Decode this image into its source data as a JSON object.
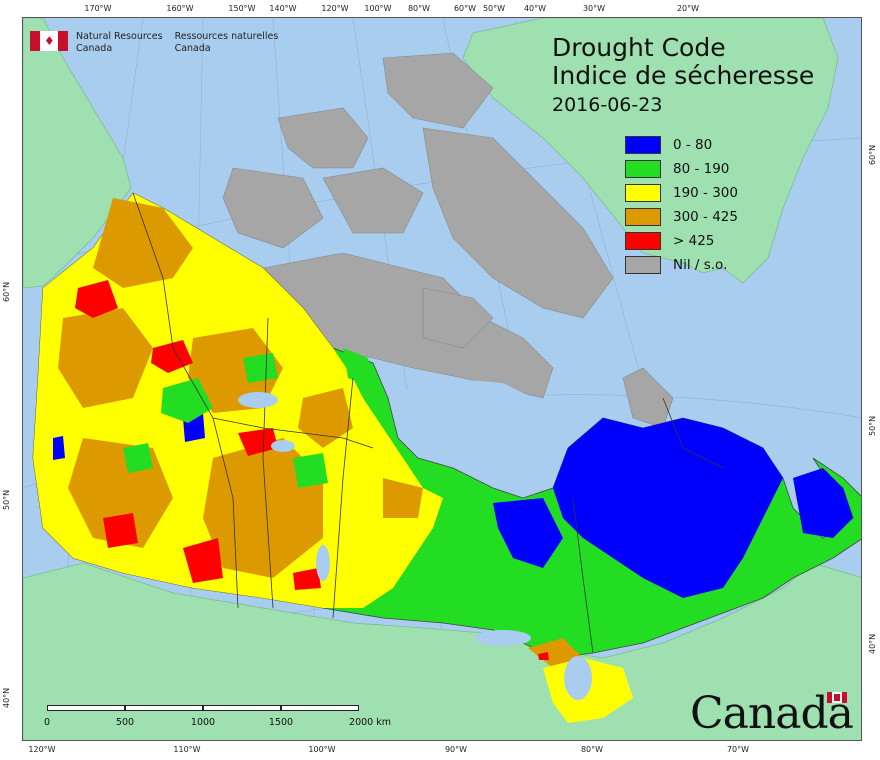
{
  "title": {
    "line1": "Drought Code",
    "line2": "Indice de sécheresse",
    "date": "2016-06-23"
  },
  "agency": {
    "en_line1": "Natural Resources",
    "en_line2": "Canada",
    "fr_line1": "Ressources naturelles",
    "fr_line2": "Canada"
  },
  "wordmark": "Canada",
  "legend": [
    {
      "label": "0 - 80",
      "color": "#0000ff"
    },
    {
      "label": "80 - 190",
      "color": "#22dd22"
    },
    {
      "label": "190 - 300",
      "color": "#ffff00"
    },
    {
      "label": "300 - 425",
      "color": "#dd9a00"
    },
    {
      "label": "> 425",
      "color": "#ff0000"
    },
    {
      "label": "Nil / s.o.",
      "color": "#a6a6a6"
    }
  ],
  "ticks": {
    "top": [
      "170°W",
      "160°W",
      "150°W",
      "140°W",
      "120°W",
      "100°W",
      "80°W",
      "60°W",
      "50°W",
      "40°W",
      "30°W",
      "20°W"
    ],
    "bottom": [
      "120°W",
      "110°W",
      "100°W",
      "90°W",
      "80°W",
      "70°W"
    ],
    "left": [
      "60°N",
      "50°N",
      "40°N"
    ],
    "right": [
      "60°N",
      "50°N",
      "40°N"
    ]
  },
  "scale": {
    "labels": [
      "0",
      "500",
      "1000",
      "1500",
      "2000 km"
    ]
  },
  "colors": {
    "water": "#a9cdee",
    "land_other": "#9ee0b0",
    "nil": "#a6a6a6"
  }
}
